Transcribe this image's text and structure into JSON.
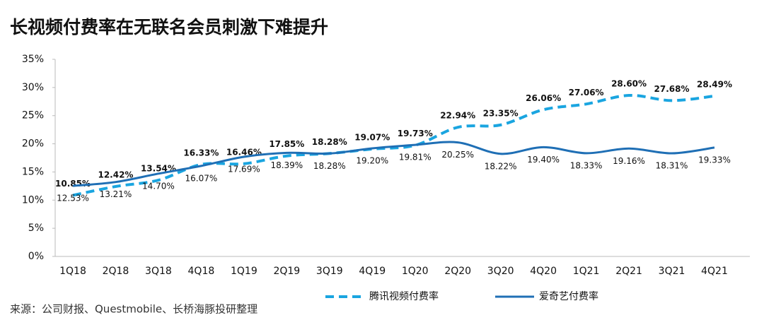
{
  "chart_data": {
    "type": "line",
    "title": "长视频付费率在无联名会员刺激下难提升",
    "source": "来源：公司财报、Questmobile、长桥海豚投研整理",
    "categories": [
      "1Q18",
      "2Q18",
      "3Q18",
      "4Q18",
      "1Q19",
      "2Q19",
      "3Q19",
      "4Q19",
      "1Q20",
      "2Q20",
      "3Q20",
      "4Q20",
      "1Q21",
      "2Q21",
      "3Q21",
      "4Q21"
    ],
    "series": [
      {
        "name": "腾讯视频付费率",
        "color": "#1aa5e0",
        "dashed": true,
        "label_position": "above",
        "values": [
          10.85,
          12.42,
          13.54,
          16.33,
          16.46,
          17.85,
          18.28,
          19.07,
          19.73,
          22.94,
          23.35,
          26.06,
          27.06,
          28.6,
          27.68,
          28.49
        ],
        "value_labels": [
          "10.85%",
          "12.42%",
          "13.54%",
          "16.33%",
          "16.46%",
          "17.85%",
          "18.28%",
          "19.07%",
          "19.73%",
          "22.94%",
          "23.35%",
          "26.06%",
          "27.06%",
          "28.60%",
          "27.68%",
          "28.49%"
        ]
      },
      {
        "name": "爱奇艺付费率",
        "color": "#1f6fb5",
        "dashed": false,
        "label_position": "below",
        "values": [
          12.53,
          13.21,
          14.7,
          16.07,
          17.69,
          18.39,
          18.28,
          19.2,
          19.81,
          20.25,
          18.22,
          19.4,
          18.33,
          19.16,
          18.31,
          19.33
        ],
        "value_labels": [
          "12.53%",
          "13.21%",
          "14.70%",
          "16.07%",
          "17.69%",
          "18.39%",
          "18.28%",
          "19.20%",
          "19.81%",
          "20.25%",
          "18.22%",
          "19.40%",
          "18.33%",
          "19.16%",
          "18.31%",
          "19.33%"
        ]
      }
    ],
    "ylim": [
      0,
      35
    ],
    "yticks": [
      {
        "value": 0,
        "label": "0%"
      },
      {
        "value": 5,
        "label": "5%"
      },
      {
        "value": 10,
        "label": "10%"
      },
      {
        "value": 15,
        "label": "15%"
      },
      {
        "value": 20,
        "label": "20%"
      },
      {
        "value": 25,
        "label": "25%"
      },
      {
        "value": 30,
        "label": "30%"
      },
      {
        "value": 35,
        "label": "35%"
      }
    ],
    "grid": false,
    "legend": "bottom"
  }
}
